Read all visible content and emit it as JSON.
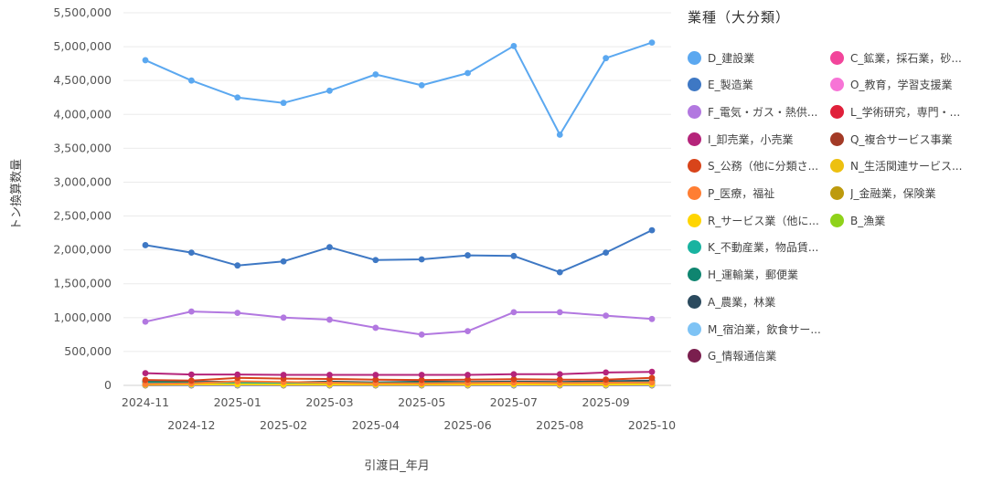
{
  "chart_data": {
    "type": "line",
    "xlabel": "引渡日_年月",
    "ylabel": "トン換算数量",
    "ylim": [
      0,
      5500000
    ],
    "yticks": [
      0,
      500000,
      1000000,
      1500000,
      2000000,
      2500000,
      3000000,
      3500000,
      4000000,
      4500000,
      5000000,
      5500000
    ],
    "ytick_labels": [
      "0",
      "500,000",
      "1,000,000",
      "1,500,000",
      "2,000,000",
      "2,500,000",
      "3,000,000",
      "3,500,000",
      "4,000,000",
      "4,500,000",
      "5,000,000",
      "5,500,000"
    ],
    "x": [
      "2024-11",
      "2024-12",
      "2025-01",
      "2025-02",
      "2025-03",
      "2025-04",
      "2025-05",
      "2025-06",
      "2025-07",
      "2025-08",
      "2025-09",
      "2025-10"
    ],
    "grid": true,
    "legend_title": "業種（大分類）",
    "legend_placement": "right",
    "series": [
      {
        "name": "D_建設業",
        "color": "#5ba8f0",
        "values": [
          4800000,
          4500000,
          4250000,
          4170000,
          4350000,
          4590000,
          4430000,
          4610000,
          5010000,
          3700000,
          4830000,
          5060000
        ]
      },
      {
        "name": "E_製造業",
        "color": "#3e78c4",
        "values": [
          2070000,
          1960000,
          1770000,
          1830000,
          2040000,
          1850000,
          1860000,
          1920000,
          1910000,
          1670000,
          1960000,
          2290000
        ]
      },
      {
        "name": "F_電気・ガス・熱供...",
        "color": "#b278e0",
        "values": [
          940000,
          1090000,
          1070000,
          1000000,
          970000,
          850000,
          750000,
          800000,
          1080000,
          1080000,
          1030000,
          980000
        ]
      },
      {
        "name": "I_卸売業，小売業",
        "color": "#b5247a",
        "values": [
          180000,
          160000,
          160000,
          155000,
          155000,
          155000,
          155000,
          155000,
          165000,
          165000,
          190000,
          200000
        ]
      },
      {
        "name": "S_公務（他に分類さ...",
        "color": "#d8441a",
        "values": [
          80000,
          70000,
          110000,
          100000,
          95000,
          85000,
          80000,
          85000,
          90000,
          85000,
          85000,
          110000
        ]
      },
      {
        "name": "P_医療，福祉",
        "color": "#ff7e33",
        "values": [
          20000,
          30000,
          60000,
          50000,
          40000,
          30000,
          30000,
          35000,
          40000,
          35000,
          40000,
          45000
        ]
      },
      {
        "name": "R_サービス業（他に...",
        "color": "#ffd500",
        "values": [
          10000,
          15000,
          15000,
          12000,
          12000,
          12000,
          12000,
          12000,
          15000,
          12000,
          12000,
          15000
        ]
      },
      {
        "name": "K_不動産業，物品賃...",
        "color": "#19b3a0",
        "values": [
          30000,
          25000,
          30000,
          25000,
          30000,
          25000,
          25000,
          25000,
          30000,
          25000,
          30000,
          30000
        ]
      },
      {
        "name": "H_運輸業，郵便業",
        "color": "#0f8570",
        "values": [
          50000,
          40000,
          45000,
          40000,
          45000,
          40000,
          45000,
          40000,
          45000,
          40000,
          45000,
          50000
        ]
      },
      {
        "name": "A_農業，林業",
        "color": "#2b4a5e",
        "values": [
          60000,
          50000,
          55000,
          45000,
          55000,
          45000,
          55000,
          50000,
          55000,
          50000,
          60000,
          70000
        ]
      },
      {
        "name": "M_宿泊業，飲食サー...",
        "color": "#7ec3f5",
        "values": [
          5000,
          5000,
          5000,
          5000,
          5000,
          5000,
          5000,
          5000,
          5000,
          5000,
          5000,
          5000
        ]
      },
      {
        "name": "G_情報通信業",
        "color": "#7a1f4e",
        "values": [
          3000,
          3000,
          3000,
          3000,
          3000,
          3000,
          3000,
          3000,
          3000,
          3000,
          3000,
          3000
        ]
      },
      {
        "name": "C_鉱業，採石業，砂...",
        "color": "#f2459b",
        "values": [
          4000,
          4000,
          4000,
          4000,
          4000,
          4000,
          4000,
          4000,
          4000,
          4000,
          4000,
          4000
        ]
      },
      {
        "name": "O_教育，学習支援業",
        "color": "#f774d6",
        "values": [
          3000,
          3000,
          3000,
          3000,
          3000,
          3000,
          3000,
          3000,
          3000,
          3000,
          3000,
          3000
        ]
      },
      {
        "name": "L_学術研究，専門・...",
        "color": "#e0203a",
        "values": [
          8000,
          8000,
          8000,
          8000,
          8000,
          8000,
          8000,
          8000,
          8000,
          8000,
          8000,
          8000
        ]
      },
      {
        "name": "Q_複合サービス事業",
        "color": "#a33a26",
        "values": [
          2000,
          2000,
          2000,
          2000,
          2000,
          2000,
          2000,
          2000,
          2000,
          2000,
          2000,
          2000
        ]
      },
      {
        "name": "N_生活関連サービス...",
        "color": "#edc010",
        "values": [
          6000,
          6000,
          6000,
          6000,
          6000,
          6000,
          6000,
          6000,
          6000,
          6000,
          6000,
          6000
        ]
      },
      {
        "name": "J_金融業，保険業",
        "color": "#bd9a0d",
        "values": [
          2000,
          2000,
          2000,
          2000,
          2000,
          2000,
          2000,
          2000,
          2000,
          2000,
          2000,
          2000
        ]
      },
      {
        "name": "B_漁業",
        "color": "#8fd21a",
        "values": [
          1000,
          1000,
          1000,
          1000,
          1000,
          1000,
          1000,
          1000,
          1000,
          1000,
          1000,
          1000
        ]
      }
    ]
  }
}
